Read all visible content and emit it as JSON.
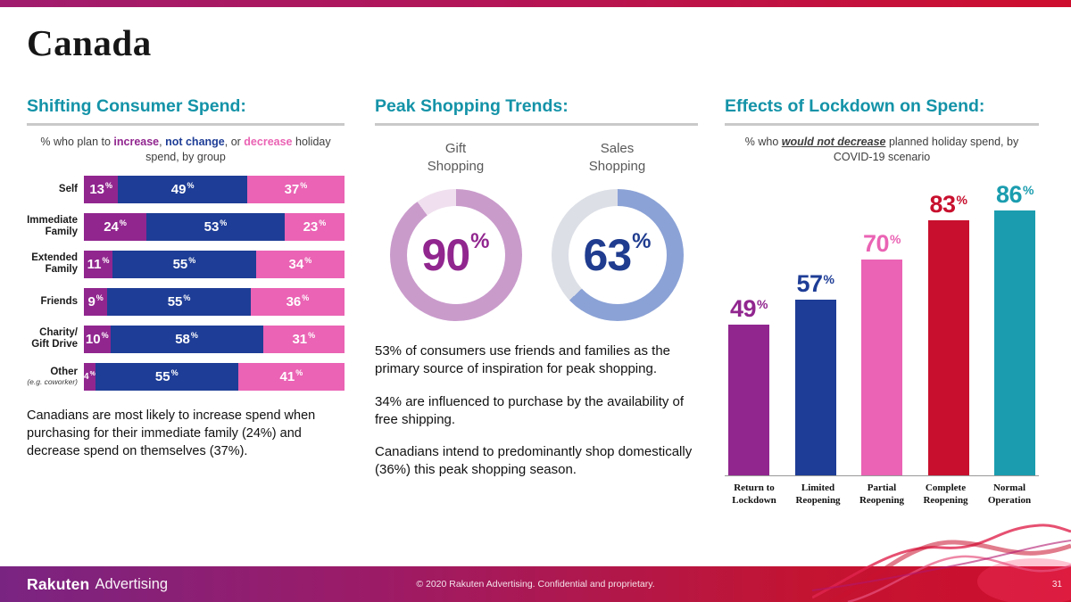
{
  "percent_sign": "%",
  "slide": {
    "title": "Canada"
  },
  "panels": {
    "spend": {
      "heading": "Shifting Consumer Spend:",
      "subtitle": {
        "prefix": "% who plan to ",
        "increase": "increase",
        "sep1": ", ",
        "not_change": "not change",
        "sep2": ", or ",
        "decrease": "decrease",
        "suffix": " holiday spend, by group"
      },
      "note": "Canadians are most likely to increase spend when purchasing for their immediate family (24%) and decrease spend on themselves (37%)."
    },
    "trends": {
      "heading": "Peak Shopping Trends:",
      "paragraphs": [
        "53% of consumers use friends and families as the primary source of inspiration for peak shopping.",
        "34% are influenced to purchase by the availability of free shipping.",
        "Canadians intend to predominantly shop domestically (36%) this peak shopping season."
      ]
    },
    "lockdown": {
      "heading": "Effects of Lockdown on Spend:",
      "subtitle": {
        "prefix": "% who ",
        "emphasis": "would not decrease",
        "suffix": " planned holiday spend, by COVID-19 scenario"
      }
    }
  },
  "footer": {
    "brand_bold": "Rakuten",
    "brand_light": "Advertising",
    "copyright": "© 2020 Rakuten Advertising. Confidential and proprietary.",
    "page_number": "31"
  },
  "chart_data": [
    {
      "type": "bar",
      "orientation": "horizontal-stacked",
      "title": "% who plan to increase, not change, or decrease holiday spend, by group",
      "categories": [
        {
          "label": "Self"
        },
        {
          "label": "Immediate\nFamily"
        },
        {
          "label": "Extended\nFamily"
        },
        {
          "label": "Friends"
        },
        {
          "label": "Charity/\nGift Drive"
        },
        {
          "label": "Other",
          "note": "(e.g. coworker)"
        }
      ],
      "series": [
        {
          "name": "increase",
          "color": "#91268F",
          "values": [
            13,
            24,
            11,
            9,
            10,
            4
          ]
        },
        {
          "name": "not change",
          "color": "#1E3D96",
          "values": [
            49,
            53,
            55,
            55,
            58,
            55
          ]
        },
        {
          "name": "decrease",
          "color": "#EA63B4",
          "values": [
            37,
            23,
            34,
            36,
            31,
            41
          ]
        }
      ]
    },
    {
      "type": "pie",
      "subtype": "donut",
      "slices": [
        {
          "label": "Gift\nShopping",
          "value": 90,
          "color": "#C99BCB",
          "track": "#F0E0EF",
          "text_color": "#91268F"
        },
        {
          "label": "Sales\nShopping",
          "value": 63,
          "color": "#8BA2D6",
          "track": "#DCDFE6",
          "text_color": "#1F3C8F"
        }
      ]
    },
    {
      "type": "bar",
      "title": "% who would not decrease planned holiday spend, by COVID-19 scenario",
      "categories": [
        "Return to\nLockdown",
        "Limited\nReopening",
        "Partial\nReopening",
        "Complete\nReopening",
        "Normal\nOperation"
      ],
      "values": [
        49,
        57,
        70,
        83,
        86
      ],
      "colors": [
        "#91268F",
        "#1E3D96",
        "#EA63B4",
        "#C8102E",
        "#1B9DAF"
      ],
      "ylim": [
        0,
        100
      ]
    }
  ]
}
